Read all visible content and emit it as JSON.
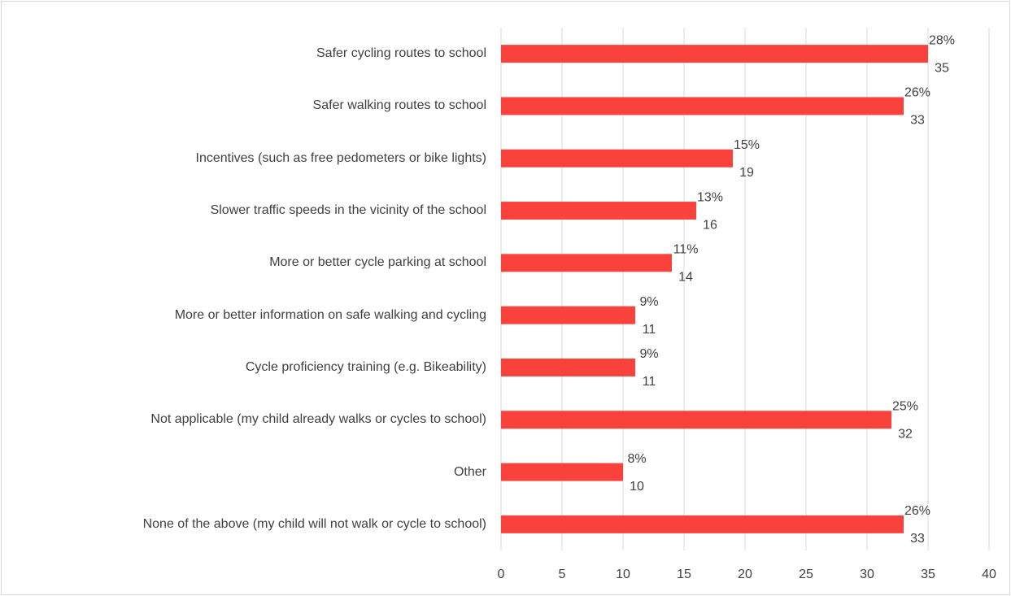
{
  "chart_data": {
    "type": "bar",
    "orientation": "horizontal",
    "categories": [
      "Safer cycling routes to school",
      "Safer walking routes to school",
      "Incentives (such as free pedometers or bike lights)",
      "Slower traffic speeds in the vicinity of the school",
      "More or better cycle parking at school",
      "More or better information on safe walking and cycling",
      "Cycle proficiency training (e.g. Bikeability)",
      "Not applicable (my child already walks or cycles to school)",
      "Other",
      "None of the above (my child will not walk or cycle to school)"
    ],
    "values": [
      35,
      33,
      19,
      16,
      14,
      11,
      11,
      32,
      10,
      33
    ],
    "percent_labels": [
      "28%",
      "26%",
      "15%",
      "13%",
      "11%",
      "9%",
      "9%",
      "25%",
      "8%",
      "26%"
    ],
    "color": "#fa423d",
    "xlim": [
      0,
      40
    ],
    "xticks": [
      0,
      5,
      10,
      15,
      20,
      25,
      30,
      35,
      40
    ],
    "grid": true
  }
}
